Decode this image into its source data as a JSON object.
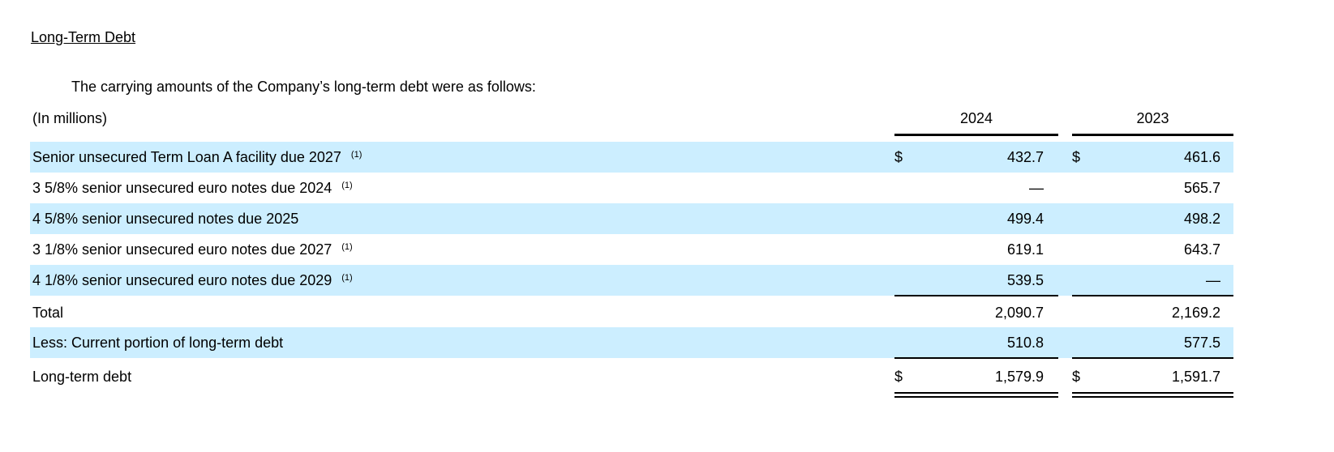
{
  "title": "Long-Term Debt",
  "intro": "The carrying amounts of the Company’s long-term debt were as follows:",
  "unit_label": "(In millions)",
  "years": [
    "2024",
    "2023"
  ],
  "rows": [
    {
      "label": "Senior unsecured Term Loan A facility due 2027",
      "note": "(1)",
      "d1": "$",
      "v1": "432.7",
      "d2": "$",
      "v2": "461.6"
    },
    {
      "label": "3 5/8% senior unsecured euro notes due 2024",
      "note": "(1)",
      "d1": "",
      "v1": "—",
      "d2": "",
      "v2": "565.7"
    },
    {
      "label": "4 5/8% senior unsecured notes due 2025",
      "note": "",
      "d1": "",
      "v1": "499.4",
      "d2": "",
      "v2": "498.2"
    },
    {
      "label": "3 1/8% senior unsecured euro notes due 2027",
      "note": "(1)",
      "d1": "",
      "v1": "619.1",
      "d2": "",
      "v2": "643.7"
    },
    {
      "label": "4 1/8% senior unsecured euro notes due 2029",
      "note": "(1)",
      "d1": "",
      "v1": "539.5",
      "d2": "",
      "v2": "—"
    },
    {
      "label": "Total",
      "note": "",
      "d1": "",
      "v1": "2,090.7",
      "d2": "",
      "v2": "2,169.2"
    },
    {
      "label": "Less: Current portion of long-term debt",
      "note": "",
      "d1": "",
      "v1": "510.8",
      "d2": "",
      "v2": "577.5"
    },
    {
      "label": "Long-term debt",
      "note": "",
      "d1": "$",
      "v1": "1,579.9",
      "d2": "$",
      "v2": "1,591.7"
    }
  ],
  "colors": {
    "shade": "#cceeff"
  }
}
